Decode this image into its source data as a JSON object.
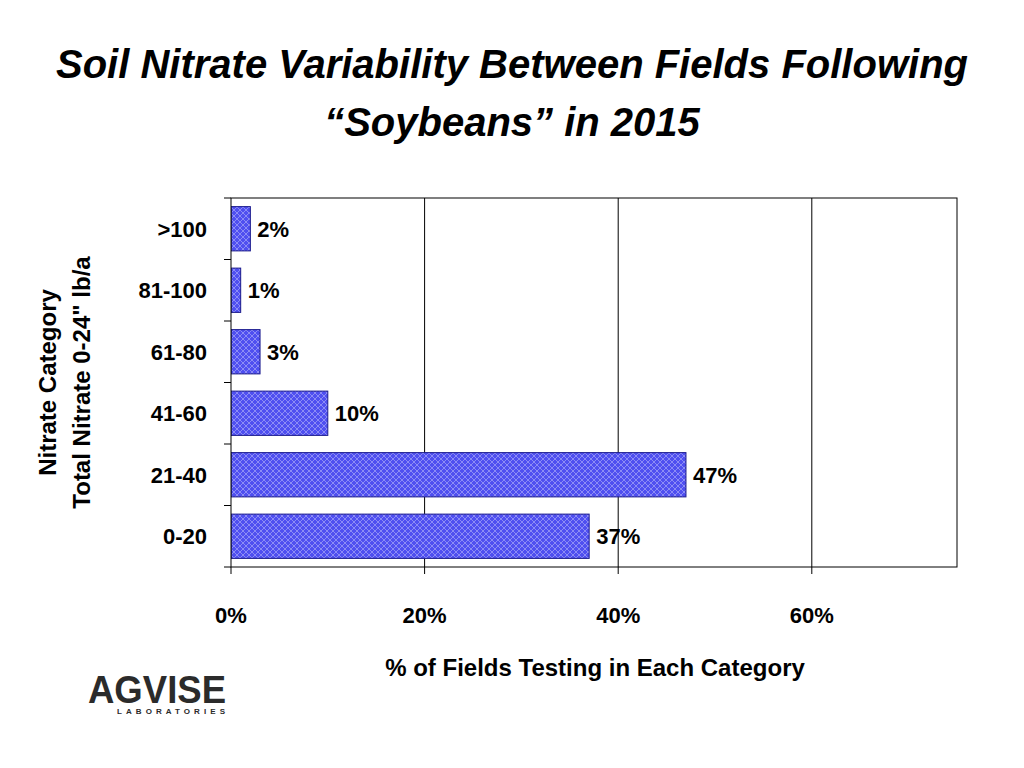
{
  "chart_data": {
    "type": "bar",
    "orientation": "horizontal",
    "title": "Soil Nitrate Variability Between Fields Following “Soybeans” in 2015",
    "xlabel": "% of Fields Testing in Each Category",
    "ylabel": [
      "Nitrate Category",
      "Total Nitrate 0-24\" lb/a"
    ],
    "categories": [
      "0-20",
      "21-40",
      "41-60",
      "61-80",
      "81-100",
      ">100"
    ],
    "values": [
      37,
      47,
      10,
      3,
      1,
      2
    ],
    "value_labels": [
      "37%",
      "47%",
      "10%",
      "3%",
      "1%",
      "2%"
    ],
    "data_labels": true,
    "color": "#4f4ff0",
    "xlim": [
      0,
      75
    ],
    "xticks": [
      {
        "value": 0,
        "label": "0%"
      },
      {
        "value": 20,
        "label": "20%"
      },
      {
        "value": 40,
        "label": "40%"
      },
      {
        "value": 60,
        "label": "60%"
      }
    ],
    "grid": true,
    "annotations": [
      "AGVISE",
      "LABORATORIES"
    ]
  }
}
